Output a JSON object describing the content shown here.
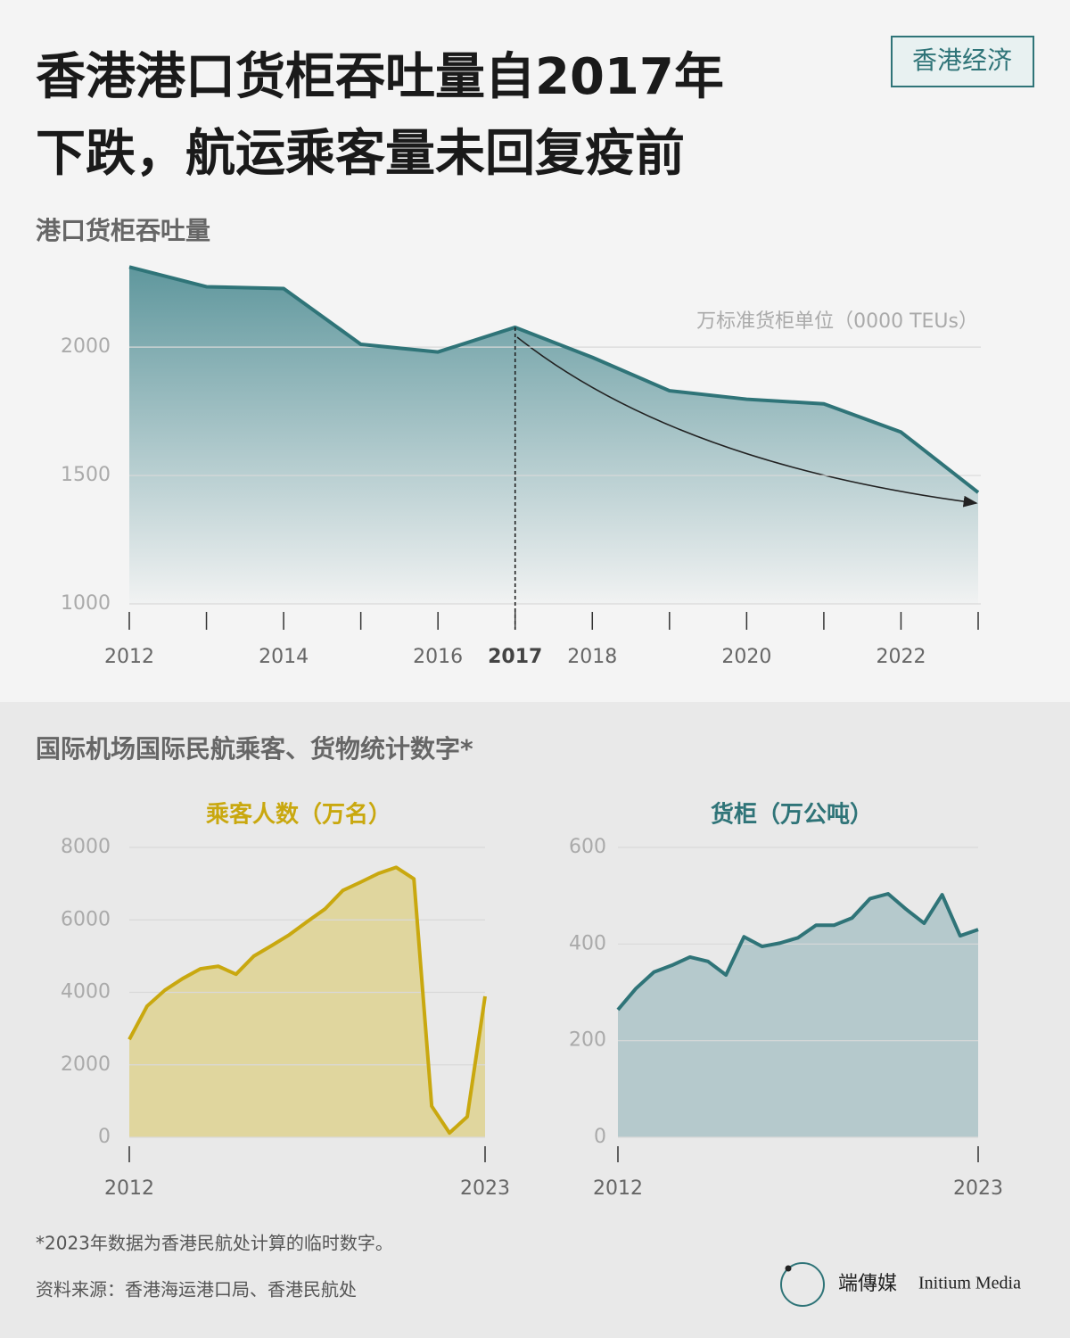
{
  "header": {
    "title_lines": [
      "香港港口货柜吞吐量自2017年",
      "下跌，航运乘客量未回复疫前"
    ],
    "tag": "香港经济"
  },
  "section_titles": [
    "港口货柜吞吐量",
    "国际机场国际民航乘客、货物统计数字*"
  ],
  "chart_data": [
    {
      "type": "area",
      "unit": "万标准货柜单位（0000 TEUs）",
      "x": [
        2012,
        2013,
        2014,
        2015,
        2016,
        2017,
        2018,
        2019,
        2020,
        2021,
        2022,
        2023
      ],
      "values": [
        2312,
        2235,
        2228,
        2011,
        1981,
        2077,
        1960,
        1830,
        1797,
        1779,
        1669,
        1434
      ],
      "xlim": [
        2012,
        2023
      ],
      "xticks": [
        2012,
        2014,
        2016,
        2017,
        2018,
        2020,
        2022
      ],
      "highlight_x": 2017,
      "ylim": [
        1000,
        2320
      ],
      "yticks": [
        1000,
        1500,
        2000
      ],
      "grid": true,
      "color": "#2f7478",
      "fill": "#5f979d"
    },
    {
      "type": "area",
      "title": "乘客人数（万名）",
      "categories": [
        "2012",
        null,
        null,
        null,
        null,
        null,
        null,
        null,
        null,
        null,
        null,
        null,
        null,
        null,
        null,
        null,
        null,
        null,
        null,
        null,
        "2023"
      ],
      "values": [
        2700,
        3620,
        4060,
        4380,
        4650,
        4720,
        4500,
        5000,
        5290,
        5590,
        5950,
        6300,
        6810,
        7040,
        7280,
        7450,
        7130,
        860,
        120,
        570,
        3890
      ],
      "ylim": [
        0,
        8000
      ],
      "yticks": [
        0,
        2000,
        4000,
        6000,
        8000
      ],
      "grid": true,
      "color": "#c9a80f",
      "fill": "#e0d69e"
    },
    {
      "type": "area",
      "title": "货柜（万公吨）",
      "categories": [
        "2012",
        null,
        null,
        null,
        null,
        null,
        null,
        null,
        null,
        null,
        null,
        null,
        null,
        null,
        null,
        null,
        null,
        null,
        null,
        null,
        "2023"
      ],
      "values": [
        264,
        308,
        342,
        356,
        373,
        364,
        336,
        415,
        395,
        402,
        413,
        439,
        439,
        454,
        494,
        504,
        472,
        443,
        502,
        417,
        430
      ],
      "ylim": [
        0,
        600
      ],
      "yticks": [
        0,
        200,
        400,
        600
      ],
      "grid": true,
      "color": "#2f7478",
      "fill": "#b5c9cc"
    }
  ],
  "footer": {
    "note": "*2023年数据为香港民航处计算的临时数字。",
    "source": "资料来源：香港海运港口局、香港民航处",
    "brand_cn": "端傳媒",
    "brand_en": "Initium Media"
  }
}
